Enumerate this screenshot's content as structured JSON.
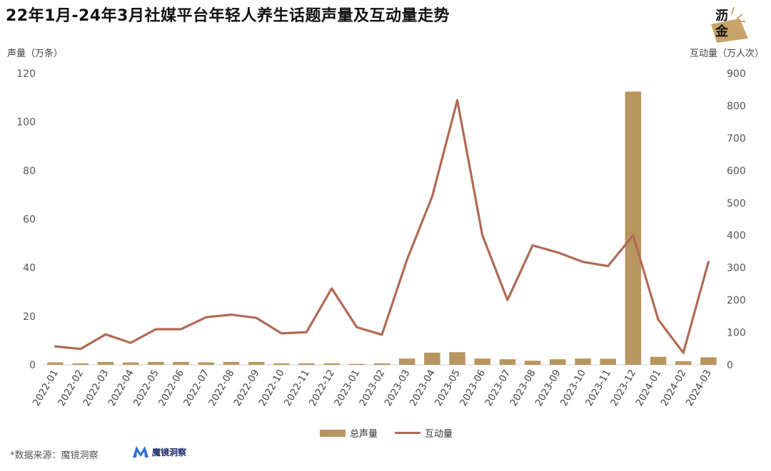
{
  "title": "22年1月-24年3月社媒平台年轻人养生话题声量及互动量走势",
  "logo": {
    "line1": "沥",
    "line2": "金"
  },
  "left_axis_unit": "声量（万条）",
  "right_axis_unit": "互动量（万人次）",
  "source": {
    "label": "*数据来源：魔镜洞察",
    "brand": "魔镜洞察"
  },
  "colors": {
    "bar": "#b8965f",
    "line": "#b06a55",
    "brand": "#1b2d6b"
  },
  "chart_data": {
    "type": "bar",
    "categories": [
      "2022-01",
      "2022-02",
      "2022-03",
      "2022-04",
      "2022-05",
      "2022-06",
      "2022-07",
      "2022-08",
      "2022-09",
      "2022-10",
      "2022-11",
      "2022-12",
      "2023-01",
      "2023-02",
      "2023-03",
      "2023-04",
      "2023-05",
      "2023-06",
      "2023-07",
      "2023-08",
      "2023-09",
      "2023-10",
      "2023-11",
      "2023-12",
      "2024-01",
      "2024-02",
      "2024-03"
    ],
    "series": [
      {
        "name": "总声量",
        "type": "bar",
        "axis": "left",
        "values": [
          1.0,
          0.6,
          1.2,
          1.0,
          1.2,
          1.2,
          1.0,
          1.2,
          1.2,
          0.6,
          0.6,
          0.6,
          0.4,
          0.6,
          2.6,
          5.0,
          5.2,
          2.6,
          2.3,
          1.7,
          2.3,
          2.6,
          2.5,
          112.5,
          3.3,
          1.5,
          3.1
        ]
      },
      {
        "name": "互动量",
        "type": "line",
        "axis": "right",
        "values": [
          57,
          49,
          94,
          68,
          110,
          110,
          147,
          155,
          145,
          97,
          101,
          236,
          116,
          93,
          325,
          520,
          817,
          400,
          200,
          369,
          347,
          318,
          305,
          400,
          140,
          37,
          318
        ]
      }
    ],
    "y_left": {
      "min": 0,
      "max": 120,
      "ticks": [
        0,
        20,
        40,
        60,
        80,
        100,
        120
      ]
    },
    "y_right": {
      "min": 0,
      "max": 900,
      "ticks": [
        0,
        100,
        200,
        300,
        400,
        500,
        600,
        700,
        800,
        900
      ]
    },
    "grid": false,
    "legend_position": "bottom-center"
  }
}
